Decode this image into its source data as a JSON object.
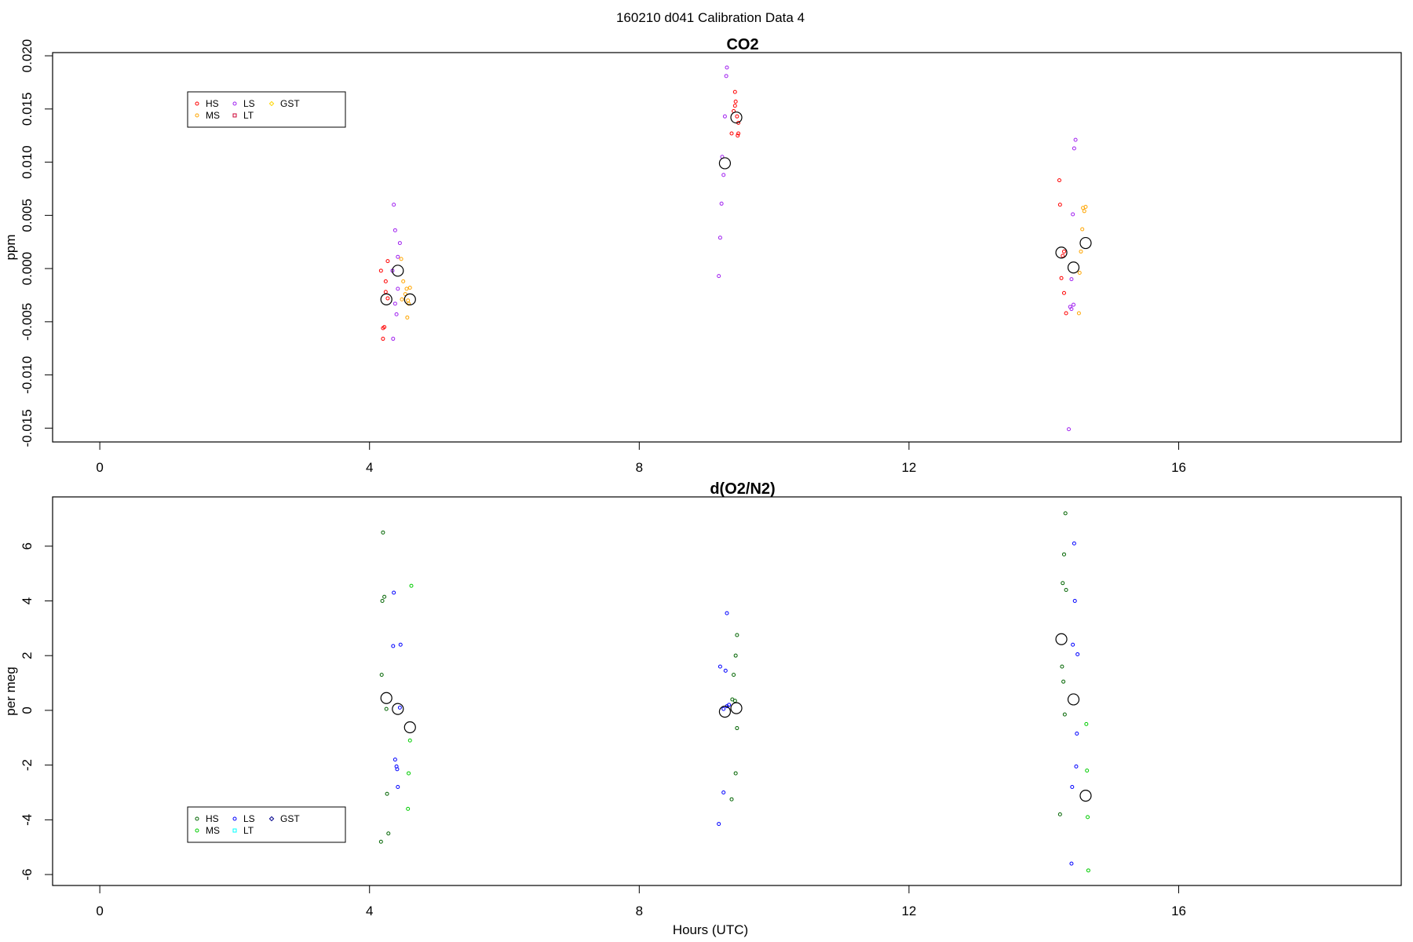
{
  "title": "160210   d041   Calibration Data 4",
  "chart_data": [
    {
      "type": "scatter",
      "title": "CO2",
      "xlabel": "",
      "ylabel": "ppm",
      "xlim": [
        -0.7,
        19.3
      ],
      "ylim": [
        -0.0163,
        0.0203
      ],
      "xticks": [
        0,
        4,
        8,
        12,
        16
      ],
      "xtick_labels": [
        "0",
        "4",
        "8",
        "12",
        "16"
      ],
      "yticks": [
        -0.015,
        -0.01,
        -0.005,
        0.0,
        0.005,
        0.01,
        0.015,
        0.02
      ],
      "ytick_labels": [
        "-0.015",
        "-0.010",
        "-0.005",
        "0.000",
        "0.005",
        "0.010",
        "0.015",
        "0.020"
      ],
      "legend": {
        "position": "top-left",
        "entries": [
          {
            "label": "HS",
            "color": "#ff0000"
          },
          {
            "label": "MS",
            "color": "#ffa500"
          },
          {
            "label": "GST",
            "color": "#ffd700"
          },
          {
            "label": "LS",
            "color": "#a020f0"
          },
          {
            "label": "LT",
            "color": "#cc0033"
          }
        ]
      },
      "series": [
        {
          "name": "HS",
          "color": "#ff0000",
          "marker": "circle",
          "points": [
            [
              4.17,
              -0.0002
            ],
            [
              4.27,
              0.0007
            ],
            [
              4.24,
              -0.0012
            ],
            [
              4.24,
              -0.0022
            ],
            [
              4.27,
              -0.0028
            ],
            [
              4.2,
              -0.0056
            ],
            [
              4.22,
              -0.0055
            ],
            [
              4.2,
              -0.0066
            ],
            [
              9.37,
              0.0127
            ],
            [
              9.4,
              0.0148
            ],
            [
              9.42,
              0.0153
            ],
            [
              9.43,
              0.0157
            ],
            [
              9.45,
              0.0143
            ],
            [
              9.47,
              0.0137
            ],
            [
              9.46,
              0.0125
            ],
            [
              9.47,
              0.0127
            ],
            [
              9.42,
              0.0166
            ],
            [
              14.23,
              0.0083
            ],
            [
              14.24,
              0.006
            ],
            [
              14.3,
              0.0016
            ],
            [
              14.28,
              0.0012
            ],
            [
              14.26,
              -0.0009
            ],
            [
              14.3,
              -0.0023
            ],
            [
              14.33,
              -0.0042
            ]
          ]
        },
        {
          "name": "MS",
          "color": "#ffa500",
          "marker": "circle",
          "points": [
            [
              4.47,
              0.0009
            ],
            [
              4.5,
              -0.0012
            ],
            [
              4.55,
              -0.0019
            ],
            [
              4.6,
              -0.0018
            ],
            [
              4.53,
              -0.0024
            ],
            [
              4.48,
              -0.0029
            ],
            [
              4.57,
              -0.003
            ],
            [
              4.58,
              -0.0033
            ],
            [
              4.56,
              -0.0046
            ],
            [
              14.58,
              0.0057
            ],
            [
              14.6,
              0.0054
            ],
            [
              14.62,
              0.0058
            ],
            [
              14.57,
              0.0037
            ],
            [
              14.55,
              0.0016
            ],
            [
              14.53,
              -0.0004
            ],
            [
              14.52,
              -0.0042
            ]
          ]
        },
        {
          "name": "LS",
          "color": "#a020f0",
          "marker": "circle",
          "points": [
            [
              4.36,
              0.006
            ],
            [
              4.38,
              0.0036
            ],
            [
              4.45,
              0.0024
            ],
            [
              4.42,
              0.0011
            ],
            [
              4.34,
              -0.0002
            ],
            [
              4.42,
              -0.0019
            ],
            [
              4.38,
              -0.0033
            ],
            [
              4.4,
              -0.0043
            ],
            [
              4.35,
              -0.0066
            ],
            [
              9.18,
              -0.0007
            ],
            [
              9.2,
              0.0029
            ],
            [
              9.22,
              0.0061
            ],
            [
              9.25,
              0.0088
            ],
            [
              9.23,
              0.0105
            ],
            [
              9.27,
              0.0143
            ],
            [
              9.29,
              0.0181
            ],
            [
              9.3,
              0.0189
            ],
            [
              14.47,
              0.0121
            ],
            [
              14.45,
              0.0113
            ],
            [
              14.43,
              0.0051
            ],
            [
              14.41,
              -0.001
            ],
            [
              14.44,
              -0.0034
            ],
            [
              14.39,
              -0.0036
            ],
            [
              14.41,
              -0.0038
            ],
            [
              14.37,
              -0.0151
            ]
          ]
        },
        {
          "name": "LT",
          "color": "#cc0033",
          "marker": "square",
          "points": []
        },
        {
          "name": "GST",
          "color": "#ffd700",
          "marker": "diamond",
          "points": []
        },
        {
          "name": "mean",
          "color": "#000000",
          "marker": "big-circle",
          "points": [
            [
              4.25,
              -0.0029
            ],
            [
              4.42,
              -0.0002
            ],
            [
              4.6,
              -0.0029
            ],
            [
              9.27,
              0.0099
            ],
            [
              9.44,
              0.0142
            ],
            [
              14.26,
              0.0015
            ],
            [
              14.44,
              0.0001
            ],
            [
              14.62,
              0.0024
            ]
          ]
        }
      ]
    },
    {
      "type": "scatter",
      "title": "d(O2/N2)",
      "xlabel": "Hours (UTC)",
      "ylabel": "per meg",
      "xlim": [
        -0.7,
        19.3
      ],
      "ylim": [
        -6.4,
        7.8
      ],
      "xticks": [
        0,
        4,
        8,
        12,
        16
      ],
      "xtick_labels": [
        "0",
        "4",
        "8",
        "12",
        "16"
      ],
      "yticks": [
        -6,
        -4,
        -2,
        0,
        2,
        4,
        6
      ],
      "ytick_labels": [
        "-6",
        "-4",
        "-2",
        "0",
        "2",
        "4",
        "6"
      ],
      "legend": {
        "position": "bottom-left",
        "entries": [
          {
            "label": "HS",
            "color": "#006400"
          },
          {
            "label": "MS",
            "color": "#00cc00"
          },
          {
            "label": "GST",
            "color": "#00008b"
          },
          {
            "label": "LS",
            "color": "#0000ff"
          },
          {
            "label": "LT",
            "color": "#00ffff"
          }
        ]
      },
      "series": [
        {
          "name": "HS",
          "color": "#006400",
          "marker": "circle",
          "points": [
            [
              4.2,
              6.5
            ],
            [
              4.22,
              4.15
            ],
            [
              4.19,
              4.0
            ],
            [
              4.18,
              1.3
            ],
            [
              4.25,
              0.05
            ],
            [
              4.26,
              -3.05
            ],
            [
              4.28,
              -4.5
            ],
            [
              4.17,
              -4.8
            ],
            [
              9.45,
              2.75
            ],
            [
              9.43,
              2.0
            ],
            [
              9.4,
              1.3
            ],
            [
              9.38,
              0.4
            ],
            [
              9.42,
              0.35
            ],
            [
              9.45,
              -0.65
            ],
            [
              9.43,
              -2.3
            ],
            [
              9.37,
              -3.25
            ],
            [
              14.32,
              7.2
            ],
            [
              14.3,
              5.7
            ],
            [
              14.28,
              4.65
            ],
            [
              14.33,
              4.4
            ],
            [
              14.27,
              1.6
            ],
            [
              14.29,
              1.05
            ],
            [
              14.31,
              -0.15
            ],
            [
              14.24,
              -3.8
            ]
          ]
        },
        {
          "name": "MS",
          "color": "#00cc00",
          "marker": "circle",
          "points": [
            [
              4.62,
              4.55
            ],
            [
              4.6,
              -1.1
            ],
            [
              4.58,
              -2.3
            ],
            [
              4.57,
              -3.6
            ],
            [
              14.63,
              -0.5
            ],
            [
              14.64,
              -2.2
            ],
            [
              14.65,
              -3.9
            ],
            [
              14.66,
              -5.85
            ]
          ]
        },
        {
          "name": "LS",
          "color": "#0000ff",
          "marker": "circle",
          "points": [
            [
              4.36,
              4.3
            ],
            [
              4.35,
              2.35
            ],
            [
              4.46,
              2.4
            ],
            [
              4.45,
              0.1
            ],
            [
              4.38,
              -1.8
            ],
            [
              4.4,
              -2.05
            ],
            [
              4.41,
              -2.15
            ],
            [
              4.42,
              -2.8
            ],
            [
              9.3,
              3.55
            ],
            [
              9.2,
              1.6
            ],
            [
              9.28,
              1.45
            ],
            [
              9.25,
              0.05
            ],
            [
              9.3,
              0.15
            ],
            [
              9.33,
              0.2
            ],
            [
              9.25,
              -3.0
            ],
            [
              9.18,
              -4.15
            ],
            [
              14.45,
              6.1
            ],
            [
              14.46,
              4.0
            ],
            [
              14.43,
              2.4
            ],
            [
              14.5,
              2.05
            ],
            [
              14.49,
              -0.85
            ],
            [
              14.48,
              -2.05
            ],
            [
              14.42,
              -2.8
            ],
            [
              14.41,
              -5.6
            ]
          ]
        },
        {
          "name": "LT",
          "color": "#00ffff",
          "marker": "square",
          "points": []
        },
        {
          "name": "GST",
          "color": "#00008b",
          "marker": "diamond",
          "points": []
        },
        {
          "name": "mean",
          "color": "#000000",
          "marker": "big-circle",
          "points": [
            [
              4.25,
              0.45
            ],
            [
              4.42,
              0.05
            ],
            [
              4.6,
              -0.62
            ],
            [
              9.27,
              -0.05
            ],
            [
              9.44,
              0.08
            ],
            [
              14.26,
              2.6
            ],
            [
              14.44,
              0.4
            ],
            [
              14.62,
              -3.12
            ]
          ]
        }
      ]
    }
  ]
}
